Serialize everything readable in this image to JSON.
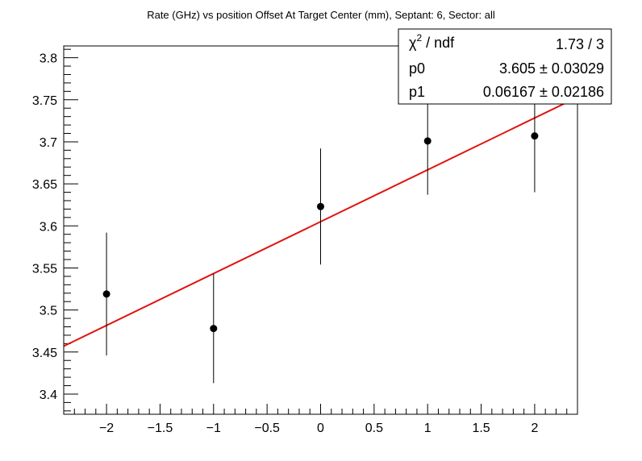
{
  "chart_data": {
    "type": "scatter",
    "title": "Rate (GHz) vs position Offset At Target Center (mm), Septant: 6, Sector: all",
    "xlabel": "",
    "ylabel": "",
    "xlim": [
      -2.4,
      2.4
    ],
    "ylim": [
      3.376,
      3.814
    ],
    "x_ticks": [
      -2,
      -1.5,
      -1,
      -0.5,
      0,
      0.5,
      1,
      1.5,
      2
    ],
    "x_tick_labels": [
      "−2",
      "−1.5",
      "−1",
      "−0.5",
      "0",
      "0.5",
      "1",
      "1.5",
      "2"
    ],
    "y_ticks": [
      3.4,
      3.45,
      3.5,
      3.55,
      3.6,
      3.65,
      3.7,
      3.75,
      3.8
    ],
    "y_tick_labels": [
      "3.4",
      "3.45",
      "3.5",
      "3.55",
      "3.6",
      "3.65",
      "3.7",
      "3.75",
      "3.8"
    ],
    "points": [
      {
        "x": -2,
        "y": 3.519,
        "err": 0.073
      },
      {
        "x": -1,
        "y": 3.478,
        "err": 0.065
      },
      {
        "x": 0,
        "y": 3.623,
        "err": 0.069
      },
      {
        "x": 1,
        "y": 3.701,
        "err": 0.064
      },
      {
        "x": 2,
        "y": 3.707,
        "err": 0.067
      }
    ],
    "fit": {
      "p0": 3.605,
      "p1": 0.06167,
      "x_range": [
        -2.4,
        2.4
      ],
      "color": "#e0140f"
    },
    "grid": false,
    "stats_box": {
      "chi2_label": "χ",
      "chi2_sup": "2",
      "chi2_suffix": " / ndf",
      "chi2_value": "1.73 / 3",
      "p0_label": "p0",
      "p0_value": "3.605",
      "p0_error": "± 0.03029",
      "p1_label": "p1",
      "p1_value": "0.06167",
      "p1_error": "± 0.02186"
    }
  }
}
